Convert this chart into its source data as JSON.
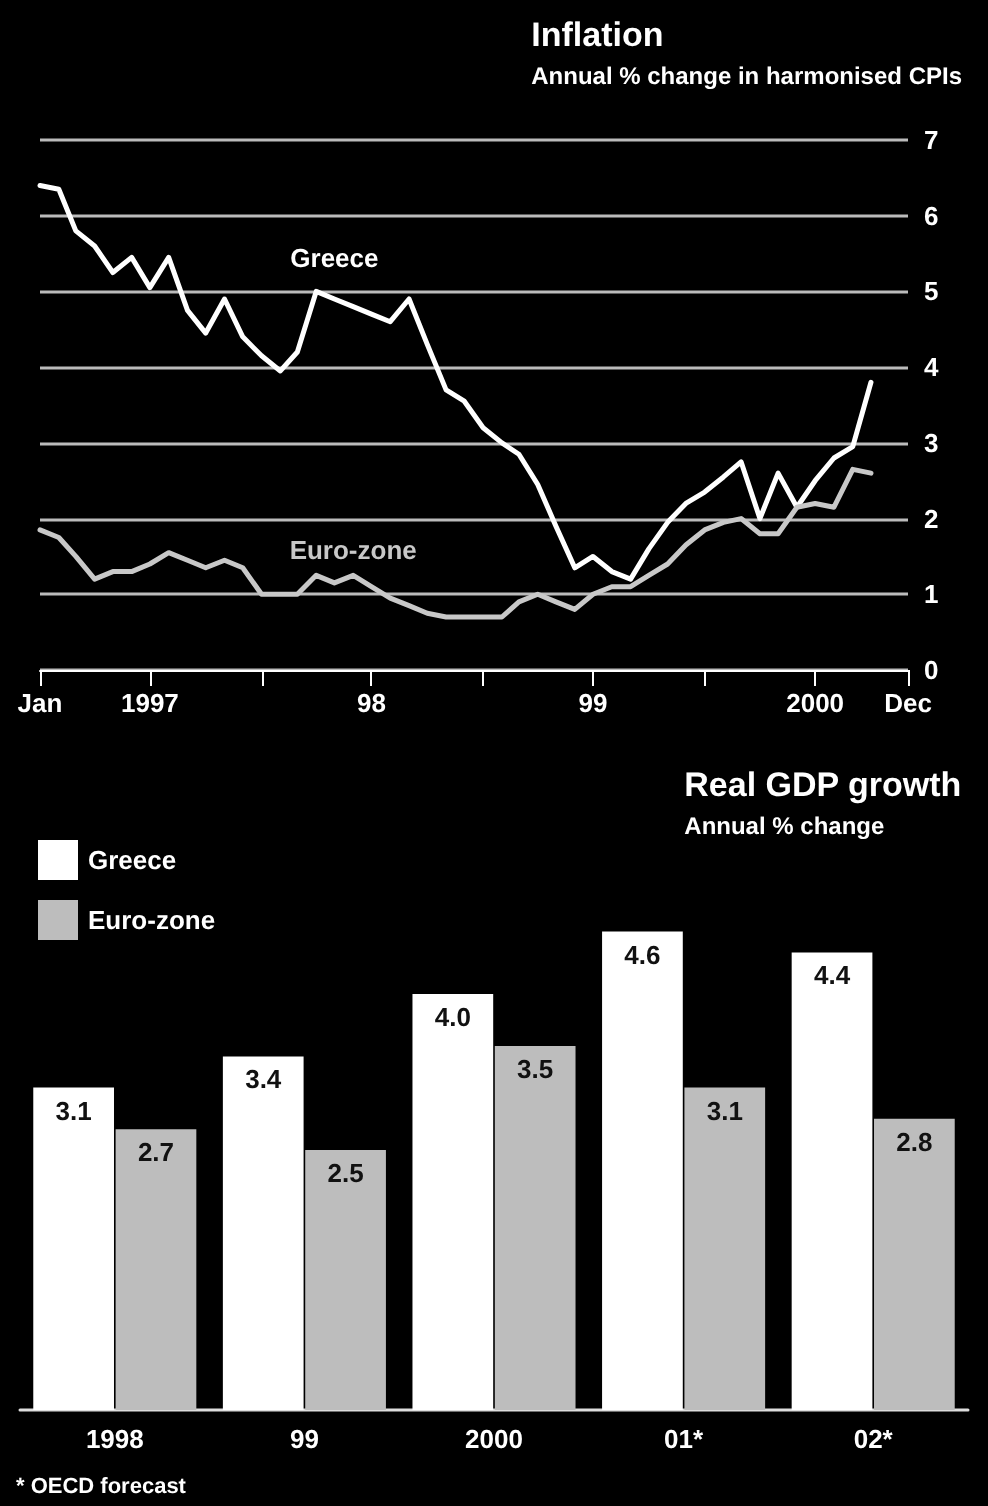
{
  "chart_data": [
    {
      "type": "line",
      "title": "Inflation",
      "subtitle": "Annual % change in harmonised CPIs",
      "x": [
        "1997-01",
        "1997-02",
        "1997-03",
        "1997-04",
        "1997-05",
        "1997-06",
        "1997-07",
        "1997-08",
        "1997-09",
        "1997-10",
        "1997-11",
        "1997-12",
        "1998-01",
        "1998-02",
        "1998-03",
        "1998-04",
        "1998-05",
        "1998-06",
        "1998-07",
        "1998-08",
        "1998-09",
        "1998-10",
        "1998-11",
        "1998-12",
        "1999-01",
        "1999-02",
        "1999-03",
        "1999-04",
        "1999-05",
        "1999-06",
        "1999-07",
        "1999-08",
        "1999-09",
        "1999-10",
        "1999-11",
        "1999-12",
        "2000-01",
        "2000-02",
        "2000-03",
        "2000-04",
        "2000-05",
        "2000-06",
        "2000-07",
        "2000-08",
        "2000-09",
        "2000-10"
      ],
      "series": [
        {
          "name": "Greece",
          "color": "#ffffff",
          "values": [
            6.4,
            6.35,
            5.8,
            5.6,
            5.25,
            5.45,
            5.05,
            5.45,
            4.75,
            4.45,
            4.9,
            4.4,
            4.15,
            3.95,
            4.2,
            5.0,
            4.9,
            4.8,
            4.7,
            4.6,
            4.9,
            4.3,
            3.7,
            3.55,
            3.2,
            3.0,
            2.85,
            2.45,
            1.9,
            1.35,
            1.5,
            1.3,
            1.2,
            1.6,
            1.95,
            2.2,
            2.35,
            2.55,
            2.75,
            2.0,
            2.6,
            2.15,
            2.5,
            2.8,
            2.95,
            3.8
          ]
        },
        {
          "name": "Euro-zone",
          "color": "#c8c8c8",
          "values": [
            1.85,
            1.75,
            1.5,
            1.2,
            1.3,
            1.3,
            1.4,
            1.55,
            1.45,
            1.35,
            1.45,
            1.35,
            1.0,
            1.0,
            1.0,
            1.25,
            1.15,
            1.25,
            1.1,
            0.95,
            0.85,
            0.75,
            0.7,
            0.7,
            0.7,
            0.7,
            0.9,
            1.0,
            0.9,
            0.8,
            1.0,
            1.1,
            1.1,
            1.25,
            1.4,
            1.65,
            1.85,
            1.95,
            2.0,
            1.8,
            1.8,
            2.15,
            2.2,
            2.15,
            2.65,
            2.6
          ]
        }
      ],
      "xlim": [
        "1997-01",
        "2000-12"
      ],
      "xticks": [
        {
          "value": "1997-01",
          "label": "Jan"
        },
        {
          "value": "1997-07",
          "label": "1997"
        },
        {
          "value": "1998-01",
          "label": null
        },
        {
          "value": "1998-07",
          "label": "98"
        },
        {
          "value": "1999-01",
          "label": null
        },
        {
          "value": "1999-07",
          "label": "99"
        },
        {
          "value": "2000-01",
          "label": null
        },
        {
          "value": "2000-07",
          "label": "2000"
        },
        {
          "value": "2000-12",
          "label": "Dec"
        }
      ],
      "ylim": [
        0,
        7
      ],
      "yticks": [
        0,
        1,
        2,
        3,
        4,
        5,
        6,
        7
      ],
      "grid": "y"
    },
    {
      "type": "bar",
      "title": "Real GDP growth",
      "subtitle": "Annual % change",
      "categories": [
        "1998",
        "99",
        "2000",
        "01*",
        "02*"
      ],
      "series": [
        {
          "name": "Greece",
          "color": "#ffffff",
          "values": [
            3.1,
            3.4,
            4.0,
            4.6,
            4.4
          ],
          "value_labels": [
            "3.1",
            "3.4",
            "4.0",
            "4.6",
            "4.4"
          ]
        },
        {
          "name": "Euro-zone",
          "color": "#bdbdbd",
          "values": [
            2.7,
            2.5,
            3.5,
            3.1,
            2.8
          ],
          "value_labels": [
            "2.7",
            "2.5",
            "3.5",
            "3.1",
            "2.8"
          ]
        }
      ],
      "legend": "top left",
      "annotations": [
        "* OECD forecast"
      ]
    }
  ]
}
